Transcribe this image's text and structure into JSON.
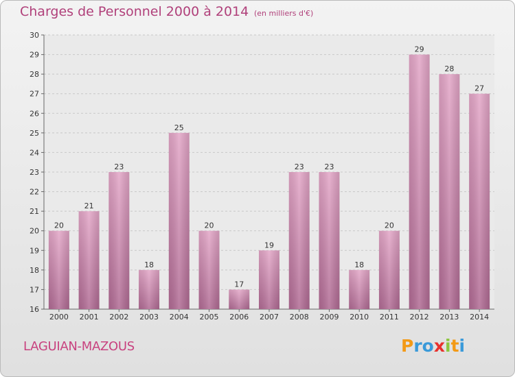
{
  "chart_data": {
    "type": "bar",
    "title": "Charges de Personnel 2000 à 2014",
    "unit": "(en milliers d'€)",
    "categories": [
      "2000",
      "2001",
      "2002",
      "2003",
      "2004",
      "2005",
      "2006",
      "2007",
      "2008",
      "2009",
      "2010",
      "2011",
      "2012",
      "2013",
      "2014"
    ],
    "values": [
      20,
      21,
      23,
      18,
      25,
      20,
      17,
      19,
      23,
      23,
      18,
      20,
      29,
      28,
      27
    ],
    "ylim": [
      16,
      30
    ],
    "yticks": [
      16,
      17,
      18,
      19,
      20,
      21,
      22,
      23,
      24,
      25,
      26,
      27,
      28,
      29,
      30
    ],
    "grid": true,
    "bar_color": "#d88fb6"
  },
  "commune": "LAGUIAN-MAZOUS",
  "logo": {
    "letters": [
      "P",
      "r",
      "o",
      "x",
      "i",
      "t",
      "i"
    ],
    "colors": [
      "#f39a16",
      "#3a9ad9",
      "#3a9ad9",
      "#e8312d",
      "#8cc63f",
      "#f39a16",
      "#3a9ad9"
    ]
  }
}
